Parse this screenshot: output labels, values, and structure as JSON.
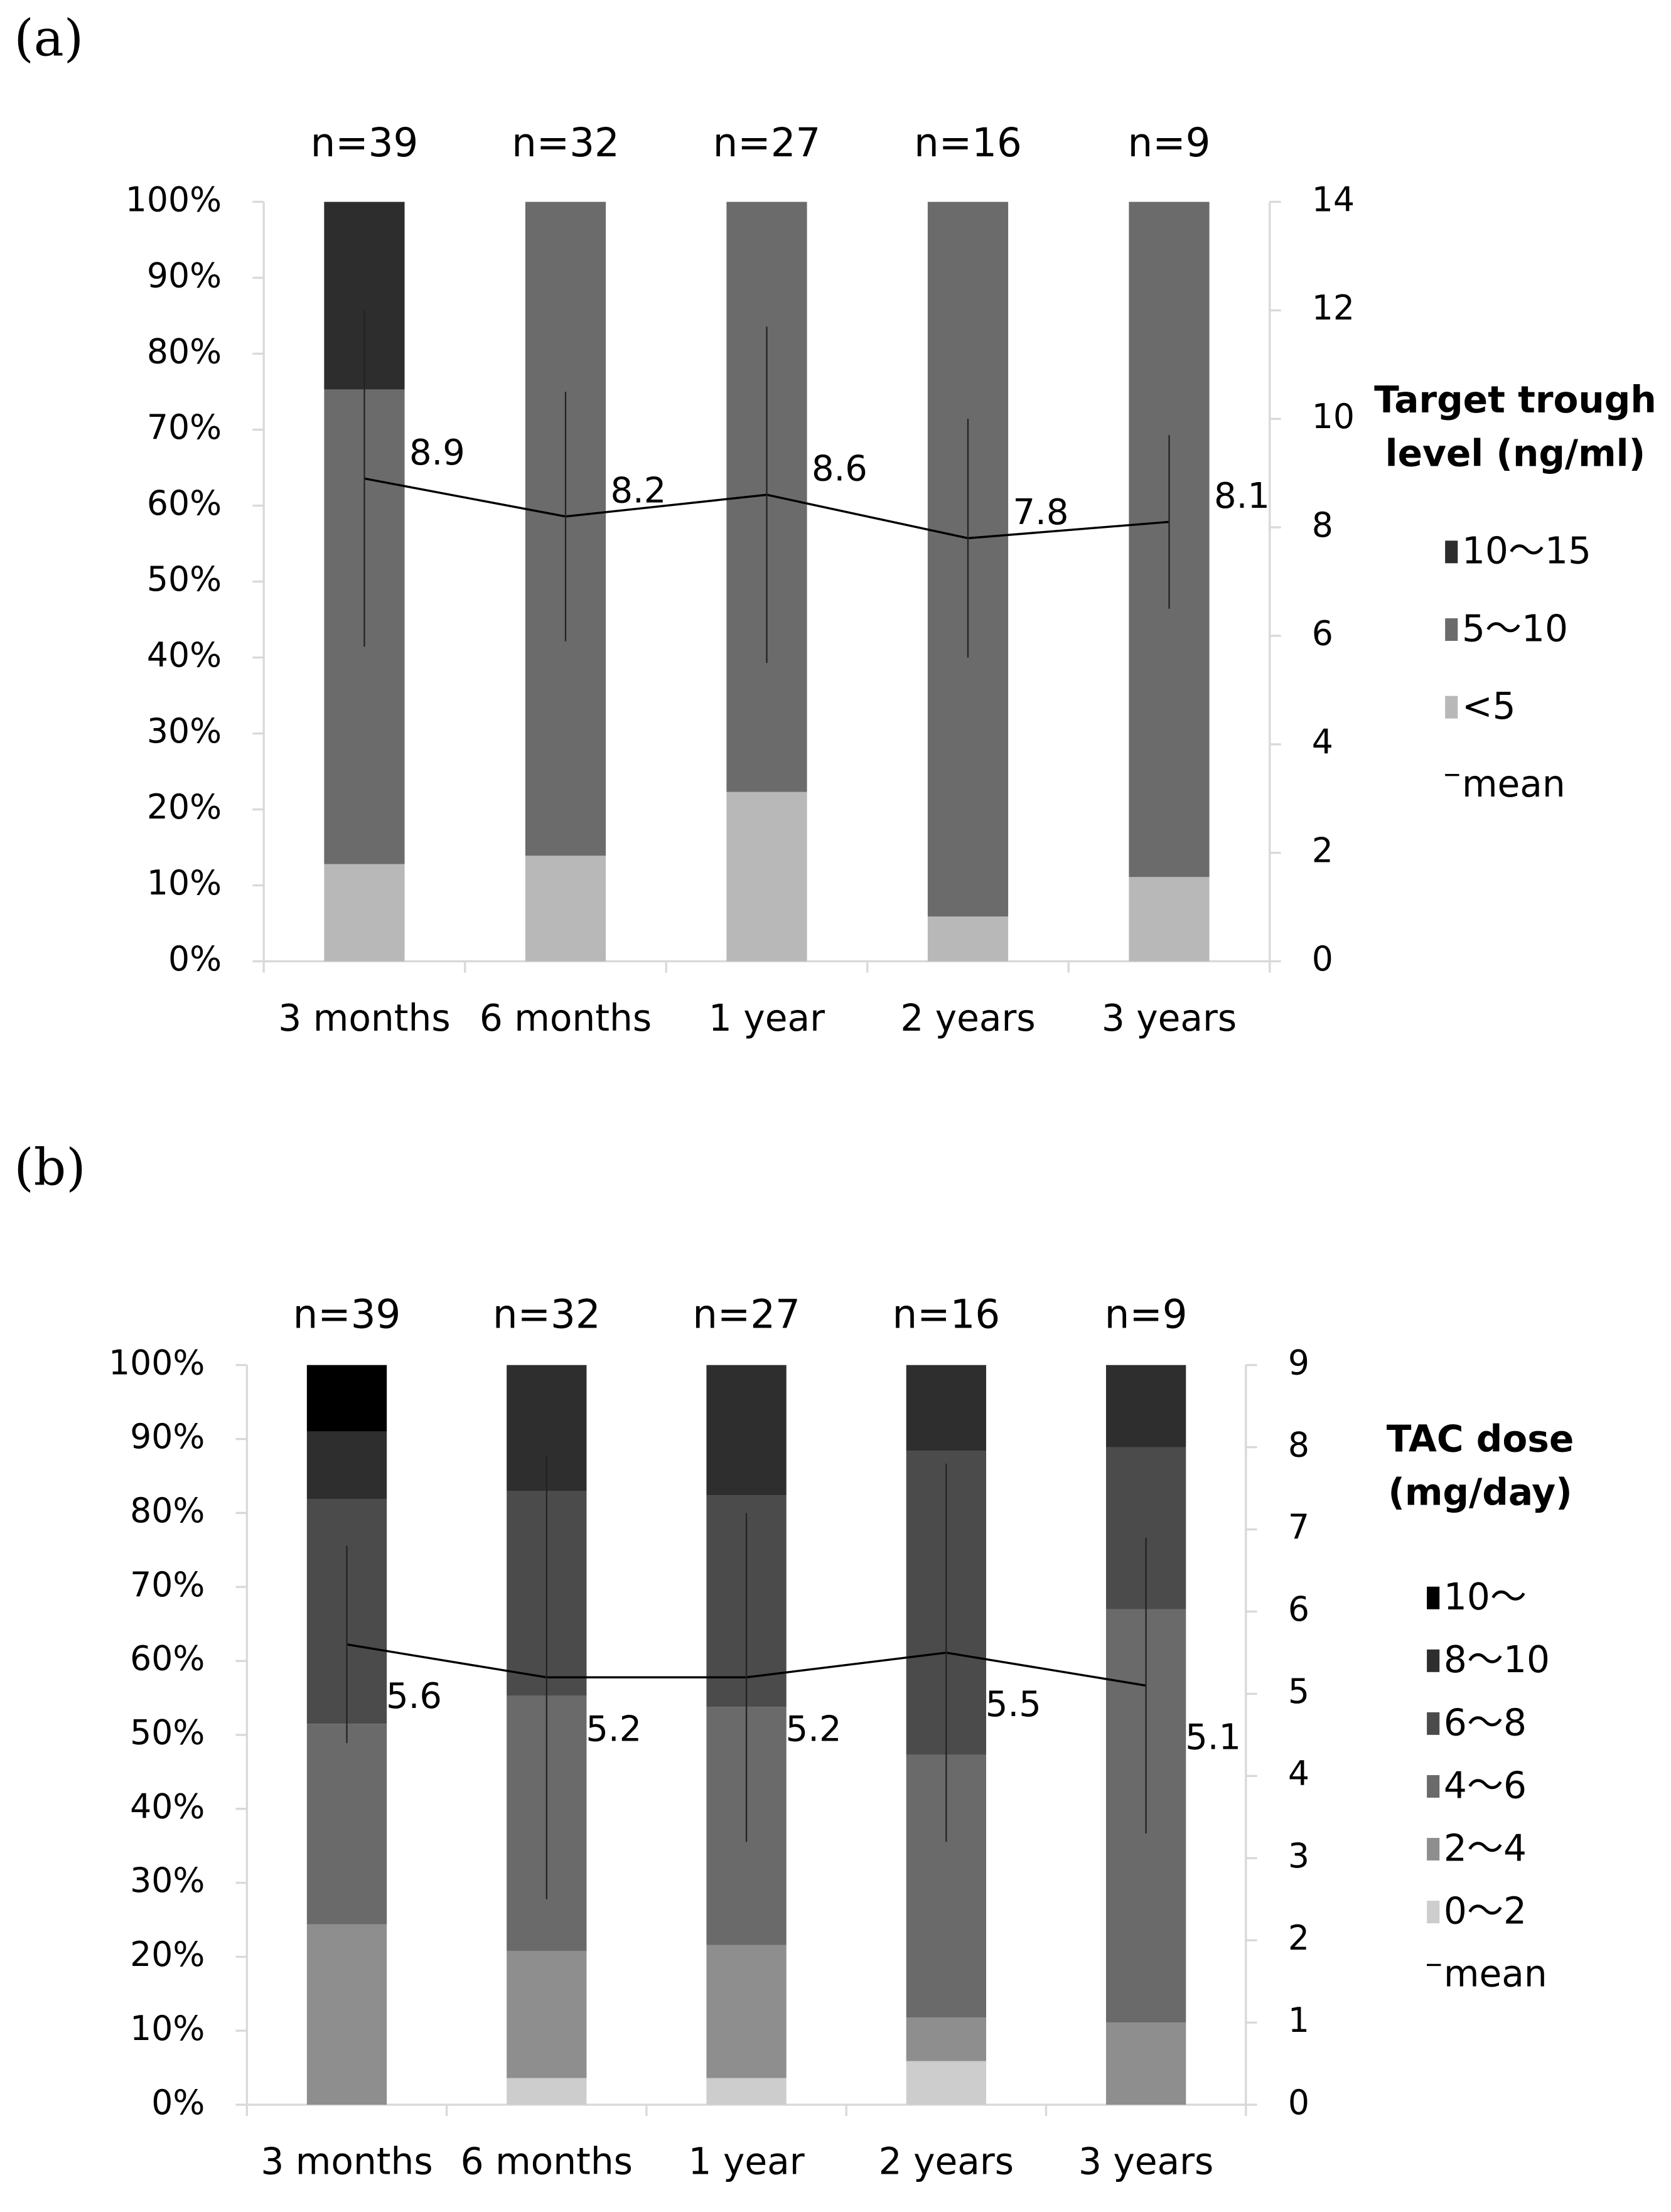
{
  "chart_data": [
    {
      "type": "bar",
      "stacked": true,
      "panel_label": "(a)",
      "top_labels": [
        "n=39",
        "n=32",
        "n=27",
        "n=16",
        "n=9"
      ],
      "categories": [
        "3 months",
        "6 months",
        "1 year",
        "2 years",
        "3 years"
      ],
      "legend_title": [
        "Target trough",
        "level (ng/ml)"
      ],
      "series": [
        {
          "name": "<5",
          "color": "#b8b8b8",
          "values": [
            12.8,
            13.9,
            22.3,
            5.9,
            11.1
          ]
        },
        {
          "name": "5〜10",
          "color": "#6b6b6b",
          "values": [
            62.5,
            86.1,
            77.7,
            94.1,
            88.9
          ]
        },
        {
          "name": "10〜15",
          "color": "#2d2d2d",
          "values": [
            24.7,
            0,
            0,
            0,
            0
          ]
        },
        {
          "name": "mean",
          "type": "line",
          "axis": "y2",
          "color": "#000000",
          "values": [
            8.9,
            8.2,
            8.6,
            7.8,
            8.1
          ],
          "errors": [
            3.1,
            2.3,
            3.1,
            2.2,
            1.6
          ]
        }
      ],
      "ylim": [
        0,
        100
      ],
      "yticks": [
        {
          "value": 0,
          "label": "0%"
        },
        {
          "value": 10,
          "label": "10%"
        },
        {
          "value": 20,
          "label": "20%"
        },
        {
          "value": 30,
          "label": "30%"
        },
        {
          "value": 40,
          "label": "40%"
        },
        {
          "value": 50,
          "label": "50%"
        },
        {
          "value": 60,
          "label": "60%"
        },
        {
          "value": 70,
          "label": "70%"
        },
        {
          "value": 80,
          "label": "80%"
        },
        {
          "value": 90,
          "label": "90%"
        },
        {
          "value": 100,
          "label": "100%"
        }
      ],
      "y2lim": [
        0,
        14
      ],
      "y2ticks": [
        0,
        2,
        4,
        6,
        8,
        10,
        12,
        14
      ]
    },
    {
      "type": "bar",
      "stacked": true,
      "panel_label": "(b)",
      "top_labels": [
        "n=39",
        "n=32",
        "n=27",
        "n=16",
        "n=9"
      ],
      "categories": [
        "3 months",
        "6 months",
        "1 year",
        "2 years",
        "3 years"
      ],
      "legend_title": [
        "TAC dose",
        "(mg/day)"
      ],
      "series": [
        {
          "name": "0〜2",
          "color": "#cdcdcd",
          "values": [
            0,
            3.6,
            3.6,
            5.9,
            0
          ]
        },
        {
          "name": "2〜4",
          "color": "#8e8e8e",
          "values": [
            24.4,
            17.2,
            18.0,
            5.9,
            11.1
          ]
        },
        {
          "name": "4〜6",
          "color": "#6a6a6a",
          "values": [
            27.1,
            34.5,
            32.2,
            35.5,
            55.9
          ]
        },
        {
          "name": "6〜8",
          "color": "#4b4b4b",
          "values": [
            30.4,
            27.7,
            28.6,
            41.1,
            21.9
          ]
        },
        {
          "name": "8〜10",
          "color": "#2e2e2e",
          "values": [
            9.1,
            17.0,
            17.6,
            11.6,
            11.1
          ]
        },
        {
          "name": "10〜",
          "color": "#000000",
          "values": [
            9.0,
            0,
            0,
            0,
            0
          ]
        },
        {
          "name": "mean",
          "type": "line",
          "axis": "y2",
          "color": "#000000",
          "values": [
            5.6,
            5.2,
            5.2,
            5.5,
            5.1
          ],
          "errors": [
            1.2,
            2.7,
            2.0,
            2.3,
            1.8
          ]
        }
      ],
      "ylim": [
        0,
        100
      ],
      "yticks": [
        {
          "value": 0,
          "label": "0%"
        },
        {
          "value": 10,
          "label": "10%"
        },
        {
          "value": 20,
          "label": "20%"
        },
        {
          "value": 30,
          "label": "30%"
        },
        {
          "value": 40,
          "label": "40%"
        },
        {
          "value": 50,
          "label": "50%"
        },
        {
          "value": 60,
          "label": "60%"
        },
        {
          "value": 70,
          "label": "70%"
        },
        {
          "value": 80,
          "label": "80%"
        },
        {
          "value": 90,
          "label": "90%"
        },
        {
          "value": 100,
          "label": "100%"
        }
      ],
      "y2lim": [
        0,
        9
      ],
      "y2ticks": [
        0,
        1,
        2,
        3,
        4,
        5,
        6,
        7,
        8,
        9
      ]
    }
  ]
}
